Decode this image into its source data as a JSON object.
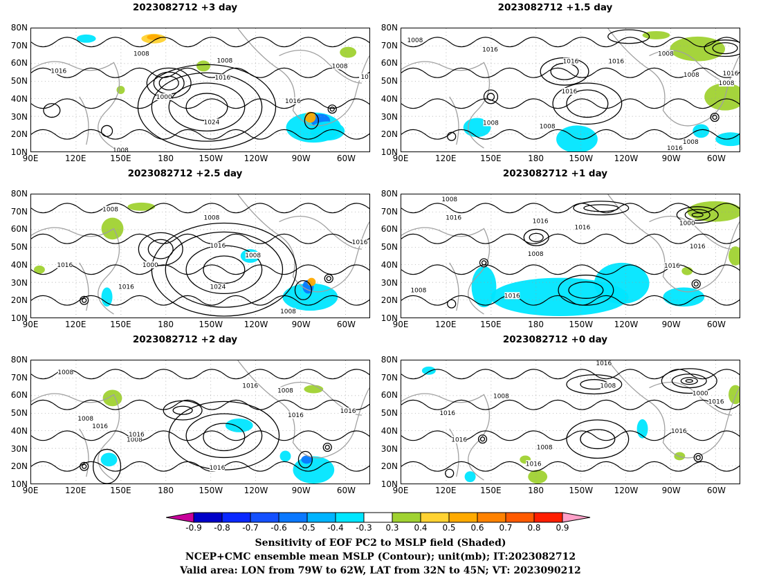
{
  "panels": [
    {
      "title": "2023082712  +3 day",
      "contour_labels": [
        "1008",
        "1016",
        "1008",
        "1016",
        "1000",
        "1024",
        "1016",
        "1008",
        "101",
        "1008"
      ]
    },
    {
      "title": "2023082712  +1.5 day",
      "contour_labels": [
        "1008",
        "1016",
        "1016",
        "1016",
        "1008",
        "1008",
        "1016",
        "1008",
        "1016",
        "1008",
        "1008",
        "1016",
        "1008"
      ]
    },
    {
      "title": "2023082712  +2.5 day",
      "contour_labels": [
        "1008",
        "1008",
        "1016",
        "1000",
        "1016",
        "1024",
        "1008",
        "1016",
        "1008",
        "1016"
      ]
    },
    {
      "title": "2023082712  +1 day",
      "contour_labels": [
        "1008",
        "1016",
        "1016",
        "1016",
        "1008",
        "1000",
        "1016",
        "1016",
        "1008",
        "1016"
      ]
    },
    {
      "title": "2023082712  +2 day",
      "contour_labels": [
        "1008",
        "1016",
        "1008",
        "1016",
        "1016",
        "1008",
        "1016",
        "1008",
        "1016",
        "1016"
      ]
    },
    {
      "title": "2023082712  +0 day",
      "contour_labels": [
        "1016",
        "1008",
        "1008",
        "1016",
        "1000",
        "1016",
        "1016",
        "1008",
        "1016",
        "1016"
      ]
    }
  ],
  "lat_labels": [
    "80N",
    "70N",
    "60N",
    "50N",
    "40N",
    "30N",
    "20N",
    "10N"
  ],
  "lon_labels": [
    "90E",
    "120E",
    "150E",
    "180",
    "150W",
    "120W",
    "90W",
    "60W"
  ],
  "colorbar": {
    "ticks": [
      "-0.9",
      "-0.8",
      "-0.7",
      "-0.6",
      "-0.5",
      "-0.4",
      "-0.3",
      "0.3",
      "0.4",
      "0.5",
      "0.6",
      "0.7",
      "0.8",
      "0.9"
    ],
    "colors": [
      "#c8009b",
      "#0000c8",
      "#0a28ff",
      "#1450ff",
      "#0a78ff",
      "#00b4ff",
      "#00e6ff",
      "#ffffff",
      "#a0d232",
      "#ffd232",
      "#ffaa00",
      "#ff8200",
      "#ff5a00",
      "#ff1e00",
      "#ffa0c8"
    ]
  },
  "caption": {
    "line1": "Sensitivity of EOF PC2 to MSLP field (Shaded)",
    "line2": "NCEP+CMC ensemble mean MSLP (Contour); unit(mb); IT:2023082712",
    "line3": "Valid area: LON from 79W to 62W, LAT from 32N to 45N; VT: 2023090212"
  }
}
